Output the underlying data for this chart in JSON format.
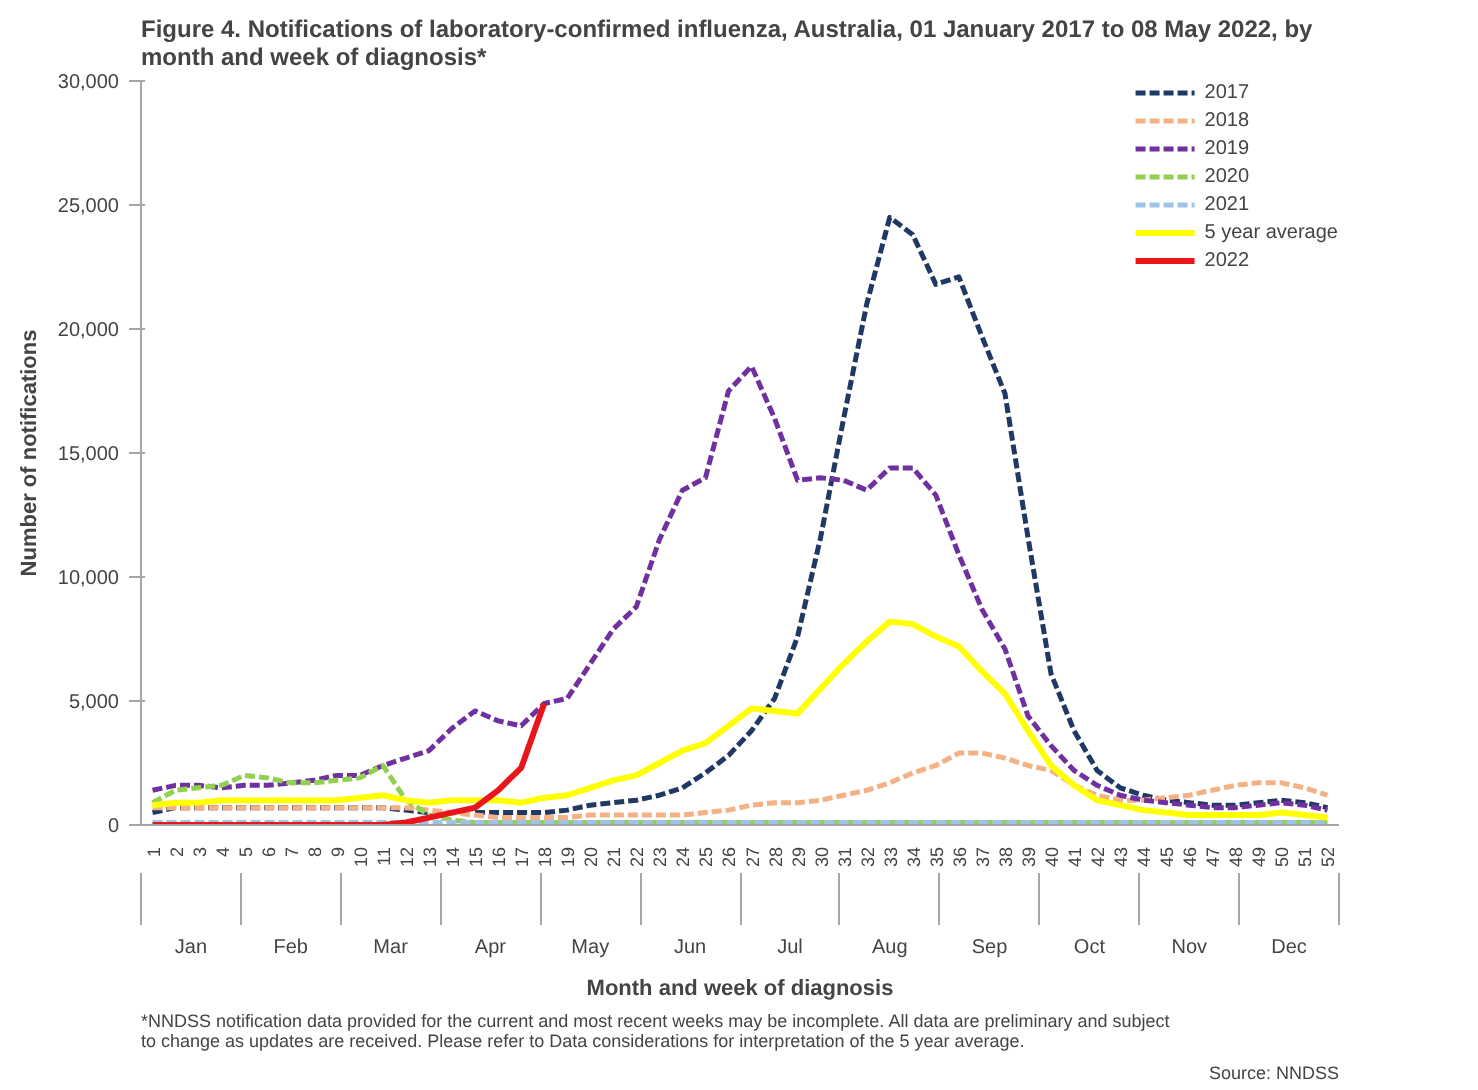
{
  "chart_data": {
    "type": "line",
    "title": "Figure 4. Notifications of laboratory-confirmed influenza, Australia, 01 January 2017 to 08 May 2022, by month and week of diagnosis*",
    "xlabel": "Month and week of diagnosis",
    "ylabel": "Number of notifications",
    "categories": [
      "1",
      "2",
      "3",
      "4",
      "5",
      "6",
      "7",
      "8",
      "9",
      "10",
      "11",
      "12",
      "13",
      "14",
      "15",
      "16",
      "17",
      "18",
      "19",
      "20",
      "21",
      "22",
      "23",
      "24",
      "25",
      "26",
      "27",
      "28",
      "29",
      "30",
      "31",
      "32",
      "33",
      "34",
      "35",
      "36",
      "37",
      "38",
      "39",
      "40",
      "41",
      "42",
      "43",
      "44",
      "45",
      "46",
      "47",
      "48",
      "49",
      "50",
      "51",
      "52"
    ],
    "ylim": [
      0,
      30000
    ],
    "yticks": [
      0,
      {
        "value": 5000,
        "label": "5,000"
      },
      {
        "value": 10000,
        "label": "10,000"
      },
      {
        "value": 15000,
        "label": "15,000"
      },
      {
        "value": 20000,
        "label": "20,000"
      },
      {
        "value": 25000,
        "label": "25,000"
      },
      {
        "value": 30000,
        "label": "30,000"
      }
    ],
    "grid": false,
    "legend": "top right",
    "marker": "none",
    "series": [
      {
        "name": "2017",
        "color": "#1f3864",
        "line_style": "dashed",
        "values": [
          500,
          700,
          700,
          700,
          700,
          700,
          700,
          700,
          700,
          700,
          700,
          600,
          500,
          null,
          500,
          500,
          500,
          500,
          600,
          800,
          900,
          1000,
          1200,
          1500,
          2100,
          2800,
          3800,
          5100,
          7600,
          11600,
          16400,
          21000,
          24500,
          23800,
          21800,
          22100,
          19700,
          17400,
          11600,
          6100,
          3800,
          2200,
          1500,
          1200,
          1000,
          900,
          800,
          800,
          900,
          1000,
          900,
          700
        ]
      },
      {
        "name": "2018",
        "color": "#f4b183",
        "line_style": "dashed",
        "values": [
          700,
          700,
          700,
          700,
          700,
          700,
          700,
          700,
          700,
          700,
          700,
          700,
          600,
          500,
          400,
          300,
          300,
          300,
          300,
          400,
          400,
          400,
          400,
          400,
          500,
          600,
          800,
          900,
          900,
          1000,
          1200,
          1400,
          1700,
          2100,
          2400,
          2900,
          2900,
          2700,
          2400,
          2200,
          1600,
          1200,
          1000,
          1000,
          1100,
          1200,
          1400,
          1600,
          1700,
          1700,
          1500,
          1200
        ]
      },
      {
        "name": "2019",
        "color": "#7030a0",
        "line_style": "dashed",
        "values": [
          1400,
          1600,
          1600,
          1500,
          1600,
          1600,
          1700,
          1800,
          2000,
          2000,
          2400,
          2700,
          3000,
          3900,
          4600,
          4200,
          4000,
          4900,
          5100,
          6500,
          7900,
          8800,
          11500,
          13500,
          14000,
          17500,
          18500,
          16400,
          13900,
          14000,
          13900,
          13500,
          14400,
          14400,
          13300,
          10900,
          8700,
          7100,
          4400,
          3200,
          2200,
          1600,
          1200,
          1000,
          900,
          800,
          700,
          700,
          800,
          900,
          800,
          600
        ]
      },
      {
        "name": "2020",
        "color": "#92d050",
        "line_style": "dashed",
        "values": [
          900,
          1400,
          1500,
          1600,
          2000,
          1900,
          1700,
          1700,
          1800,
          1900,
          2400,
          1000,
          400,
          200,
          100,
          100,
          100,
          100,
          100,
          100,
          100,
          100,
          100,
          100,
          100,
          100,
          100,
          100,
          100,
          100,
          100,
          100,
          100,
          100,
          100,
          100,
          100,
          100,
          100,
          100,
          100,
          100,
          100,
          100,
          100,
          100,
          100,
          100,
          100,
          100,
          100,
          100
        ]
      },
      {
        "name": "2021",
        "color": "#9dc3e6",
        "line_style": "dashed",
        "values": [
          100,
          100,
          100,
          100,
          100,
          100,
          100,
          100,
          100,
          100,
          100,
          100,
          100,
          100,
          100,
          100,
          100,
          100,
          100,
          100,
          100,
          100,
          100,
          100,
          100,
          100,
          100,
          100,
          100,
          100,
          100,
          100,
          100,
          100,
          100,
          100,
          100,
          100,
          100,
          100,
          100,
          100,
          100,
          100,
          100,
          100,
          100,
          100,
          100,
          100,
          100,
          100
        ]
      },
      {
        "name": "5 year average",
        "color": "#ffff00",
        "line_style": "solid",
        "values": [
          800,
          900,
          900,
          1000,
          1000,
          1000,
          1000,
          1000,
          1000,
          1100,
          1200,
          1000,
          900,
          1000,
          1000,
          1000,
          900,
          1100,
          1200,
          1500,
          1800,
          2000,
          2500,
          3000,
          3300,
          4000,
          4700,
          4600,
          4500,
          5500,
          6500,
          7400,
          8200,
          8100,
          7600,
          7200,
          6200,
          5300,
          3800,
          2400,
          1600,
          1000,
          800,
          600,
          500,
          400,
          400,
          400,
          400,
          500,
          400,
          300
        ]
      },
      {
        "name": "2022",
        "color": "#e8151b",
        "line_style": "solid",
        "values": [
          0,
          0,
          0,
          0,
          0,
          0,
          0,
          0,
          0,
          0,
          0,
          100,
          300,
          500,
          700,
          1400,
          2300,
          4900,
          null,
          null,
          null,
          null,
          null,
          null,
          null,
          null,
          null,
          null,
          null,
          null,
          null,
          null,
          null,
          null,
          null,
          null,
          null,
          null,
          null,
          null,
          null,
          null,
          null,
          null,
          null,
          null,
          null,
          null,
          null,
          null,
          null,
          null
        ]
      }
    ],
    "annotations": [
      "Jan",
      "Feb",
      "Mar",
      "Apr",
      "May",
      "Jun",
      "Jul",
      "Aug",
      "Sep",
      "Oct",
      "Nov",
      "Dec",
      "Source: NNDSS",
      "*NNDSS notification data provided for the current and most recent weeks may be incomplete. All data are preliminary and subject to change as updates are received. Please refer to Data considerations for interpretation of the 5 year average."
    ]
  }
}
